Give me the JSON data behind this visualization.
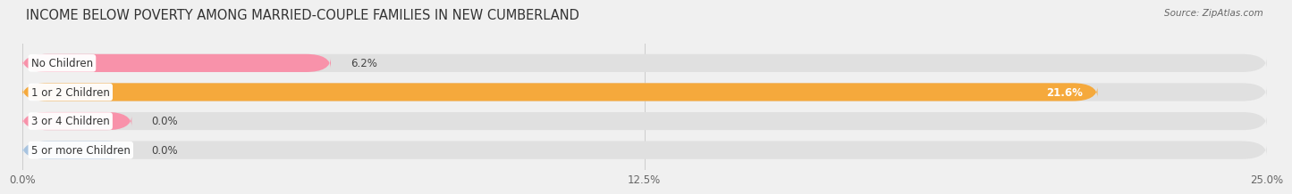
{
  "title": "INCOME BELOW POVERTY AMONG MARRIED-COUPLE FAMILIES IN NEW CUMBERLAND",
  "source": "Source: ZipAtlas.com",
  "categories": [
    "No Children",
    "1 or 2 Children",
    "3 or 4 Children",
    "5 or more Children"
  ],
  "values": [
    6.2,
    21.6,
    0.0,
    0.0
  ],
  "bar_colors": [
    "#f892aa",
    "#f5a93c",
    "#f892aa",
    "#a8c4e0"
  ],
  "xlim": [
    0,
    25.0
  ],
  "xticks": [
    0.0,
    12.5,
    25.0
  ],
  "xtick_labels": [
    "0.0%",
    "12.5%",
    "25.0%"
  ],
  "background_color": "#f0f0f0",
  "bar_bg_color": "#e0e0e0",
  "title_fontsize": 10.5,
  "label_fontsize": 8.5,
  "value_fontsize": 8.5,
  "bar_height": 0.62
}
